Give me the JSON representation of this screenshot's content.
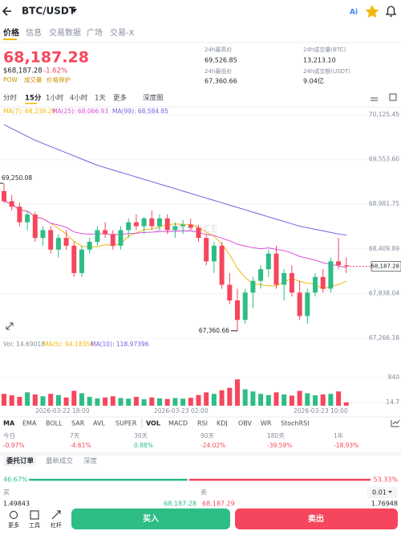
{
  "header": {
    "pair": "BTC/USDT"
  },
  "tabs": [
    "价格",
    "信息",
    "交易数据",
    "广场",
    "交易-X"
  ],
  "price": {
    "last": "68,187.28",
    "usd": "$68,187.28",
    "change": "-1.62%",
    "tags": [
      "POW",
      "成交量",
      "价格保护"
    ]
  },
  "stats": [
    {
      "label": "24h最高价",
      "value": "69,526.85"
    },
    {
      "label": "24h成交量(BTC)",
      "value": "13,213.10"
    },
    {
      "label": "24h最低价",
      "value": "67,360.66"
    },
    {
      "label": "24h成交额(USDT)",
      "value": "9.04亿"
    }
  ],
  "intervals": [
    "分时",
    "15分",
    "1小时",
    "4小时",
    "1天",
    "更多",
    "深度图"
  ],
  "chart": {
    "type": "candlestick",
    "ma_legend": [
      "MA(7): 68,238.29",
      "MA(25): 68,066.93",
      "MA(99): 68,584.85"
    ],
    "ylim": [
      67266.18,
      70125.45
    ],
    "yticks": [
      {
        "value": 70125.45,
        "label": "70,125.45"
      },
      {
        "value": 69553.6,
        "label": "69,553.60"
      },
      {
        "value": 68981.75,
        "label": "68,981.75"
      },
      {
        "value": 68409.89,
        "label": "68,409.89"
      },
      {
        "value": 67838.04,
        "label": "67,838.04"
      },
      {
        "value": 67266.18,
        "label": "67,266.18"
      }
    ],
    "candles": [
      [
        69150,
        69250.08,
        69000,
        69020
      ],
      [
        69020,
        69100,
        68900,
        68950
      ],
      [
        68950,
        69000,
        68700,
        68750
      ],
      [
        68750,
        68900,
        68650,
        68850
      ],
      [
        68850,
        68880,
        68500,
        68550
      ],
      [
        68550,
        68700,
        68450,
        68650
      ],
      [
        68650,
        68700,
        68350,
        68400
      ],
      [
        68400,
        68600,
        68300,
        68550
      ],
      [
        68550,
        68650,
        68400,
        68450
      ],
      [
        68450,
        68500,
        68050,
        68100
      ],
      [
        68100,
        68450,
        68050,
        68400
      ],
      [
        68400,
        68550,
        68350,
        68500
      ],
      [
        68500,
        68700,
        68450,
        68650
      ],
      [
        68650,
        68750,
        68550,
        68600
      ],
      [
        68600,
        68650,
        68400,
        68450
      ],
      [
        68450,
        68700,
        68400,
        68650
      ],
      [
        68650,
        68800,
        68550,
        68750
      ],
      [
        68750,
        68850,
        68650,
        68700
      ],
      [
        68700,
        68820,
        68600,
        68800
      ],
      [
        68800,
        68900,
        68650,
        68700
      ],
      [
        68700,
        68850,
        68650,
        68800
      ],
      [
        68800,
        68850,
        68600,
        68650
      ],
      [
        68650,
        68750,
        68550,
        68700
      ],
      [
        68700,
        68780,
        68600,
        68720
      ],
      [
        68720,
        68800,
        68650,
        68680
      ],
      [
        68680,
        68720,
        68500,
        68550
      ],
      [
        68550,
        68600,
        68200,
        68250
      ],
      [
        68250,
        68500,
        68100,
        68450
      ],
      [
        68450,
        68500,
        67900,
        67950
      ],
      [
        67950,
        68100,
        67700,
        67750
      ],
      [
        67750,
        67900,
        67360.66,
        67500
      ],
      [
        67500,
        67900,
        67450,
        67850
      ],
      [
        67850,
        68050,
        67650,
        68000
      ],
      [
        68000,
        68200,
        67900,
        68150
      ],
      [
        68150,
        68400,
        68050,
        68350
      ],
      [
        68350,
        68450,
        67900,
        67950
      ],
      [
        67950,
        68150,
        67750,
        68100
      ],
      [
        68100,
        68200,
        67800,
        67850
      ],
      [
        67850,
        68000,
        67500,
        67550
      ],
      [
        67550,
        67900,
        67450,
        67850
      ],
      [
        67850,
        68100,
        67800,
        68050
      ],
      [
        68050,
        68150,
        67850,
        67900
      ],
      [
        67900,
        68300,
        67850,
        68250
      ],
      [
        68250,
        68550,
        68150,
        68200
      ],
      [
        68200,
        68300,
        68100,
        68187.28
      ]
    ],
    "ma99": [
      70000,
      69950,
      69900,
      69850,
      69800,
      69760,
      69720,
      69680,
      69640,
      69600,
      69560,
      69520,
      69480,
      69450,
      69420,
      69390,
      69360,
      69330,
      69300,
      69270,
      69240,
      69210,
      69180,
      69150,
      69120,
      69090,
      69060,
      69030,
      69000,
      68970,
      68940,
      68910,
      68880,
      68850,
      68820,
      68790,
      68760,
      68730,
      68700,
      68680,
      68660,
      68640,
      68620,
      68600,
      68585
    ],
    "high_label": "69,250.08",
    "low_label": "67,360.66",
    "last_label": "68,187.28",
    "volume": {
      "legend": [
        "Vol: 14.69018",
        "MA(5): 94.18356",
        "MA(10): 118.97396"
      ],
      "ylim": [
        14.7,
        840
      ],
      "yticks": [
        840,
        14.7
      ],
      "values": [
        300,
        250,
        200,
        350,
        280,
        220,
        300,
        260,
        180,
        400,
        320,
        200,
        150,
        180,
        220,
        160,
        140,
        200,
        120,
        180,
        150,
        130,
        160,
        140,
        170,
        260,
        350,
        300,
        420,
        500,
        780,
        450,
        380,
        300,
        260,
        350,
        280,
        240,
        400,
        320,
        250,
        280,
        300,
        380,
        15
      ]
    },
    "x_labels": [
      "2026-03-22 18:00",
      "2026-03-23 02:00",
      "2026-03-23 10:00"
    ]
  },
  "indicators": [
    "MA",
    "EMA",
    "BOLL",
    "SAR",
    "AVL",
    "SUPER",
    "VOL",
    "MACD",
    "RSI",
    "KDJ",
    "OBV",
    "WR",
    "StochRSI"
  ],
  "performance": [
    {
      "period": "今日",
      "change": "-0.97%"
    },
    {
      "period": "7天",
      "change": "-4.61%"
    },
    {
      "period": "30天",
      "change": "0.88%"
    },
    {
      "period": "90天",
      "change": "-24.02%"
    },
    {
      "period": "180天",
      "change": "-39.59%"
    },
    {
      "period": "1年",
      "change": "-18.93%"
    }
  ],
  "order_tabs": [
    "委托订单",
    "最新成交",
    "深度"
  ],
  "ratio": {
    "values": [
      46.67,
      53.33
    ],
    "value_labels": [
      "46.67%",
      "53.33%"
    ]
  },
  "book": {
    "buy": "买",
    "sell": "卖",
    "precision": "0.01",
    "row": [
      "1.49843",
      "68,187.28",
      "68,187.29",
      "1.76948"
    ]
  },
  "bottom": {
    "more": "更多",
    "tools": "工具",
    "leverage": "杠杆",
    "buy": "买入",
    "sell": "卖出"
  }
}
